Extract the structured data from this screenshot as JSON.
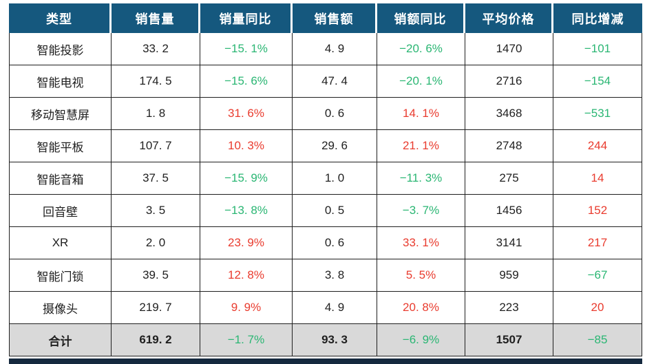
{
  "colors": {
    "header_bg": "#15587E",
    "header_text": "#FFFFFF",
    "body_text": "#1F1F1F",
    "increase_red": "#E93B2E",
    "decrease_green": "#2AB673",
    "total_row_bg": "#D9D9D9",
    "footer_bar": "#15293E",
    "border": "#1E1E1E"
  },
  "chart_data": {
    "type": "table",
    "columns": [
      "类型",
      "销售量",
      "销量同比",
      "销售额",
      "销额同比",
      "平均价格",
      "同比增减"
    ],
    "rows": [
      [
        "智能投影",
        "33. 2",
        "−15. 1%",
        "4. 9",
        "−20. 6%",
        "1470",
        "−101"
      ],
      [
        "智能电视",
        "174. 5",
        "−15. 6%",
        "47. 4",
        "−20. 1%",
        "2716",
        "−154"
      ],
      [
        "移动智慧屏",
        "1. 8",
        "31. 6%",
        "0. 6",
        "14. 1%",
        "3468",
        "−531"
      ],
      [
        "智能平板",
        "107. 7",
        "10. 3%",
        "29. 6",
        "21. 1%",
        "2748",
        "244"
      ],
      [
        "智能音箱",
        "37. 5",
        "−15. 9%",
        "1. 0",
        "−11. 3%",
        "275",
        "14"
      ],
      [
        "回音壁",
        "3. 5",
        "−13. 8%",
        "0. 5",
        "−3. 7%",
        "1456",
        "152"
      ],
      [
        "XR",
        "2. 0",
        "23. 9%",
        "0. 6",
        "33. 1%",
        "3141",
        "217"
      ],
      [
        "智能门锁",
        "39. 5",
        "12. 8%",
        "3. 8",
        "5. 5%",
        "959",
        "−67"
      ],
      [
        "摄像头",
        "219. 7",
        "9. 9%",
        "4. 9",
        "20. 8%",
        "223",
        "20"
      ],
      [
        "合计",
        "619. 2",
        "−1. 7%",
        "93. 3",
        "−6. 9%",
        "1507",
        "−85"
      ]
    ]
  }
}
